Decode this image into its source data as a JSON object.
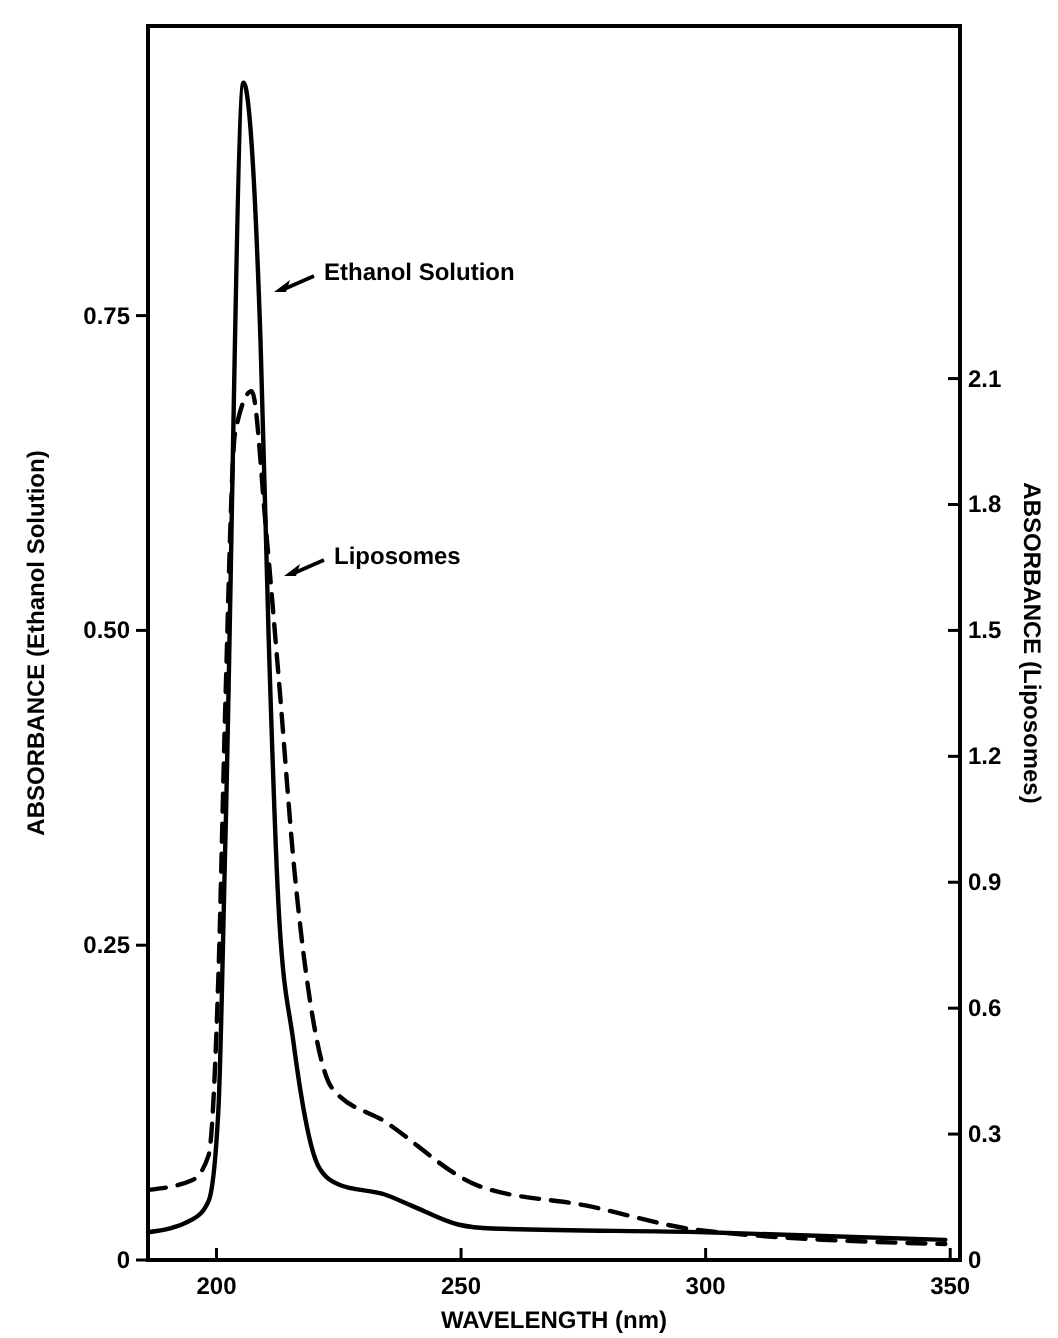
{
  "chart_data": {
    "type": "line",
    "xlabel": "WAVELENGTH (nm)",
    "ylabel": "ABSORBANCE (Ethanol Solution)",
    "y2label": "ABSORBANCE (Liposomes)",
    "xlim": [
      186,
      352
    ],
    "xticks": [
      200,
      250,
      300,
      350
    ],
    "ylim": [
      0,
      0.98
    ],
    "yticks": [
      0,
      0.25,
      {
        "value": 0.5,
        "label": "0.50"
      },
      0.75
    ],
    "y2lim": [
      0,
      2.94
    ],
    "y2ticks": [
      0,
      0.3,
      0.6,
      0.9,
      1.2,
      1.5,
      1.8,
      2.1
    ],
    "grid": false,
    "marker": "none",
    "series": [
      {
        "color": "#000000",
        "line_style": "solid",
        "x": [
          186,
          195,
          198.4,
          200.4,
          201.8,
          205.5,
          209,
          210.7,
          212.7,
          215.7,
          220.9,
          225,
          234.4,
          240,
          249.6,
          256.4,
          300,
          349
        ],
        "values": [
          0.022,
          0.032,
          0.047,
          0.12,
          0.33,
          0.935,
          0.73,
          0.49,
          0.28,
          0.174,
          0.074,
          0.06,
          0.052,
          0.043,
          0.028,
          0.025,
          0.022,
          0.016
        ]
      },
      {
        "color": "#000000",
        "line_style": "dashed",
        "axis": "y2",
        "x": [
          186,
          195,
          198.4,
          200.4,
          201.8,
          203.8,
          207.2,
          210.2,
          212.7,
          216,
          219.5,
          223.6,
          234.4,
          253.7,
          275.4,
          298.8,
          349
        ],
        "values": [
          0.167,
          0.19,
          0.25,
          0.68,
          1.32,
          1.97,
          2.07,
          1.73,
          1.39,
          0.92,
          0.59,
          0.41,
          0.33,
          0.176,
          0.13,
          0.071,
          0.038
        ]
      }
    ],
    "annotations": [
      "Ethanol Solution",
      "Liposomes"
    ]
  }
}
